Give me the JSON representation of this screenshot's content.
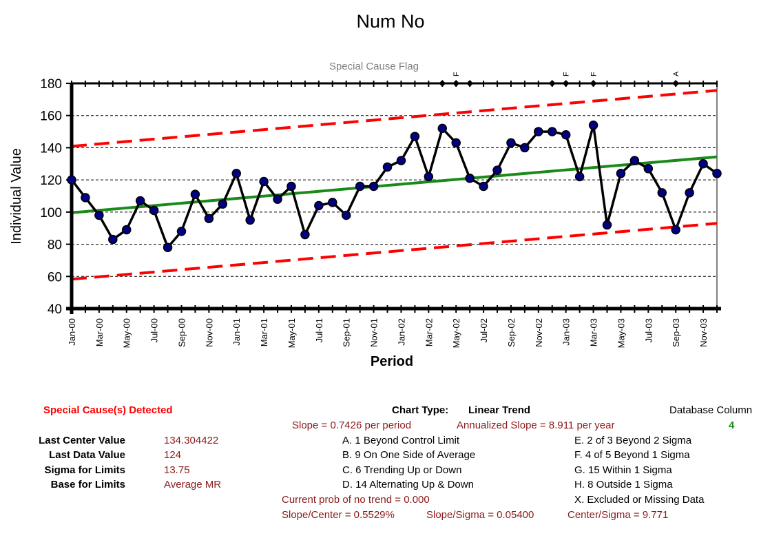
{
  "chart_data": {
    "type": "line",
    "title": "Num No",
    "xlabel": "Period",
    "ylabel": "Individual Value",
    "ylim": [
      40,
      180
    ],
    "yticks": [
      40,
      60,
      80,
      100,
      120,
      140,
      160,
      180
    ],
    "grid": true,
    "x_tick_labels": [
      "Jan-00",
      "Mar-00",
      "May-00",
      "Jul-00",
      "Sep-00",
      "Nov-00",
      "Jan-01",
      "Mar-01",
      "May-01",
      "Jul-01",
      "Sep-01",
      "Nov-01",
      "Jan-02",
      "Mar-02",
      "May-02",
      "Jul-02",
      "Sep-02",
      "Nov-02",
      "Jan-03",
      "Mar-03",
      "May-03",
      "Jul-03",
      "Sep-03",
      "Nov-03"
    ],
    "x_tick_every": 2,
    "values": [
      120,
      109,
      98,
      83,
      89,
      107,
      101,
      78,
      88,
      111,
      96,
      105,
      124,
      95,
      119,
      108,
      116,
      86,
      104,
      106,
      98,
      116,
      116,
      128,
      132,
      147,
      122,
      152,
      143,
      121,
      116,
      126,
      143,
      140,
      150,
      150,
      148,
      122,
      154,
      92,
      124,
      132,
      127,
      112,
      89,
      112,
      130,
      124
    ],
    "center_line": {
      "start": 99.6,
      "end": 134.3,
      "color": "#1a8a1a"
    },
    "upper_limit": {
      "start": 140.9,
      "end": 175.6,
      "color": "#ff0000"
    },
    "lower_limit": {
      "start": 58.3,
      "end": 93.0,
      "color": "#ff0000"
    },
    "special_cause_flag": {
      "label": "Special Cause Flag",
      "flags": [
        {
          "index": 27,
          "code": ""
        },
        {
          "index": 28,
          "code": "F"
        },
        {
          "index": 29,
          "code": ""
        },
        {
          "index": 35,
          "code": ""
        },
        {
          "index": 36,
          "code": "F"
        },
        {
          "index": 38,
          "code": "F"
        },
        {
          "index": 44,
          "code": "A"
        }
      ]
    },
    "line_color": "#000000",
    "marker_color": "#000080"
  },
  "info": {
    "detected": "Special Cause(s) Detected",
    "stats": [
      {
        "label": "Last Center Value",
        "value": "134.304422"
      },
      {
        "label": "Last Data Value",
        "value": "124"
      },
      {
        "label": "Sigma for Limits",
        "value": "13.75"
      },
      {
        "label": "Base for Limits",
        "value": "Average MR"
      }
    ],
    "chart_type_label": "Chart Type:",
    "chart_type_value": "Linear Trend",
    "slope": "Slope = 0.7426 per period",
    "annualized": "Annualized Slope = 8.911 per year",
    "db_column_label": "Database Column",
    "db_column_value": "4",
    "rules_left": [
      "A.  1 Beyond Control Limit",
      "B.  9 On One Side of Average",
      "C.  6 Trending Up or Down",
      "D.  14 Alternating  Up & Down"
    ],
    "rules_right": [
      "E.  2 of 3 Beyond 2 Sigma",
      "F.  4 of 5 Beyond 1 Sigma",
      "G.  15 Within 1 Sigma",
      "H.  8 Outside 1 Sigma",
      "X.  Excluded or Missing Data"
    ],
    "prob": "Current prob of no trend = 0.000",
    "slope_center": "Slope/Center = 0.5529%",
    "slope_sigma": "Slope/Sigma = 0.05400",
    "center_sigma": "Center/Sigma = 9.771"
  }
}
